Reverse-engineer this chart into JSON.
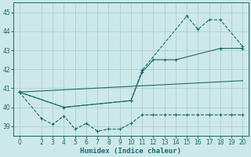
{
  "xlabel": "Humidex (Indice chaleur)",
  "background_color": "#cde8e8",
  "grid_color": "#b0d0d0",
  "line_color": "#1a6b6b",
  "xlim": [
    -0.5,
    20.5
  ],
  "ylim": [
    38.5,
    45.5
  ],
  "xticks": [
    0,
    2,
    3,
    4,
    5,
    6,
    7,
    8,
    9,
    10,
    11,
    12,
    13,
    14,
    15,
    16,
    17,
    18,
    19,
    20
  ],
  "yticks": [
    39,
    40,
    41,
    42,
    43,
    44,
    45
  ],
  "series": [
    {
      "x": [
        0,
        2,
        3,
        4,
        5,
        6,
        7,
        8,
        9,
        10,
        11,
        12,
        13,
        14,
        15,
        16,
        17,
        18,
        19,
        20
      ],
      "y": [
        40.8,
        39.4,
        39.1,
        39.55,
        38.85,
        39.15,
        38.75,
        38.85,
        38.85,
        39.15,
        39.6,
        39.6,
        39.6,
        39.6,
        39.6,
        39.6,
        39.6,
        39.6,
        39.6,
        39.6
      ],
      "style": "dashed_marker"
    },
    {
      "x": [
        0,
        4,
        10,
        11,
        12,
        13,
        14,
        18,
        20
      ],
      "y": [
        40.8,
        40.0,
        40.35,
        41.85,
        42.5,
        42.5,
        42.5,
        43.1,
        43.1
      ],
      "style": "solid_marker"
    },
    {
      "x": [
        0,
        4,
        10,
        11,
        15,
        16,
        17,
        18,
        20
      ],
      "y": [
        40.8,
        40.0,
        40.35,
        41.95,
        44.8,
        44.1,
        44.6,
        44.6,
        43.2
      ],
      "style": "dashed_marker"
    },
    {
      "x": [
        0,
        20
      ],
      "y": [
        40.8,
        41.4
      ],
      "style": "solid"
    }
  ]
}
